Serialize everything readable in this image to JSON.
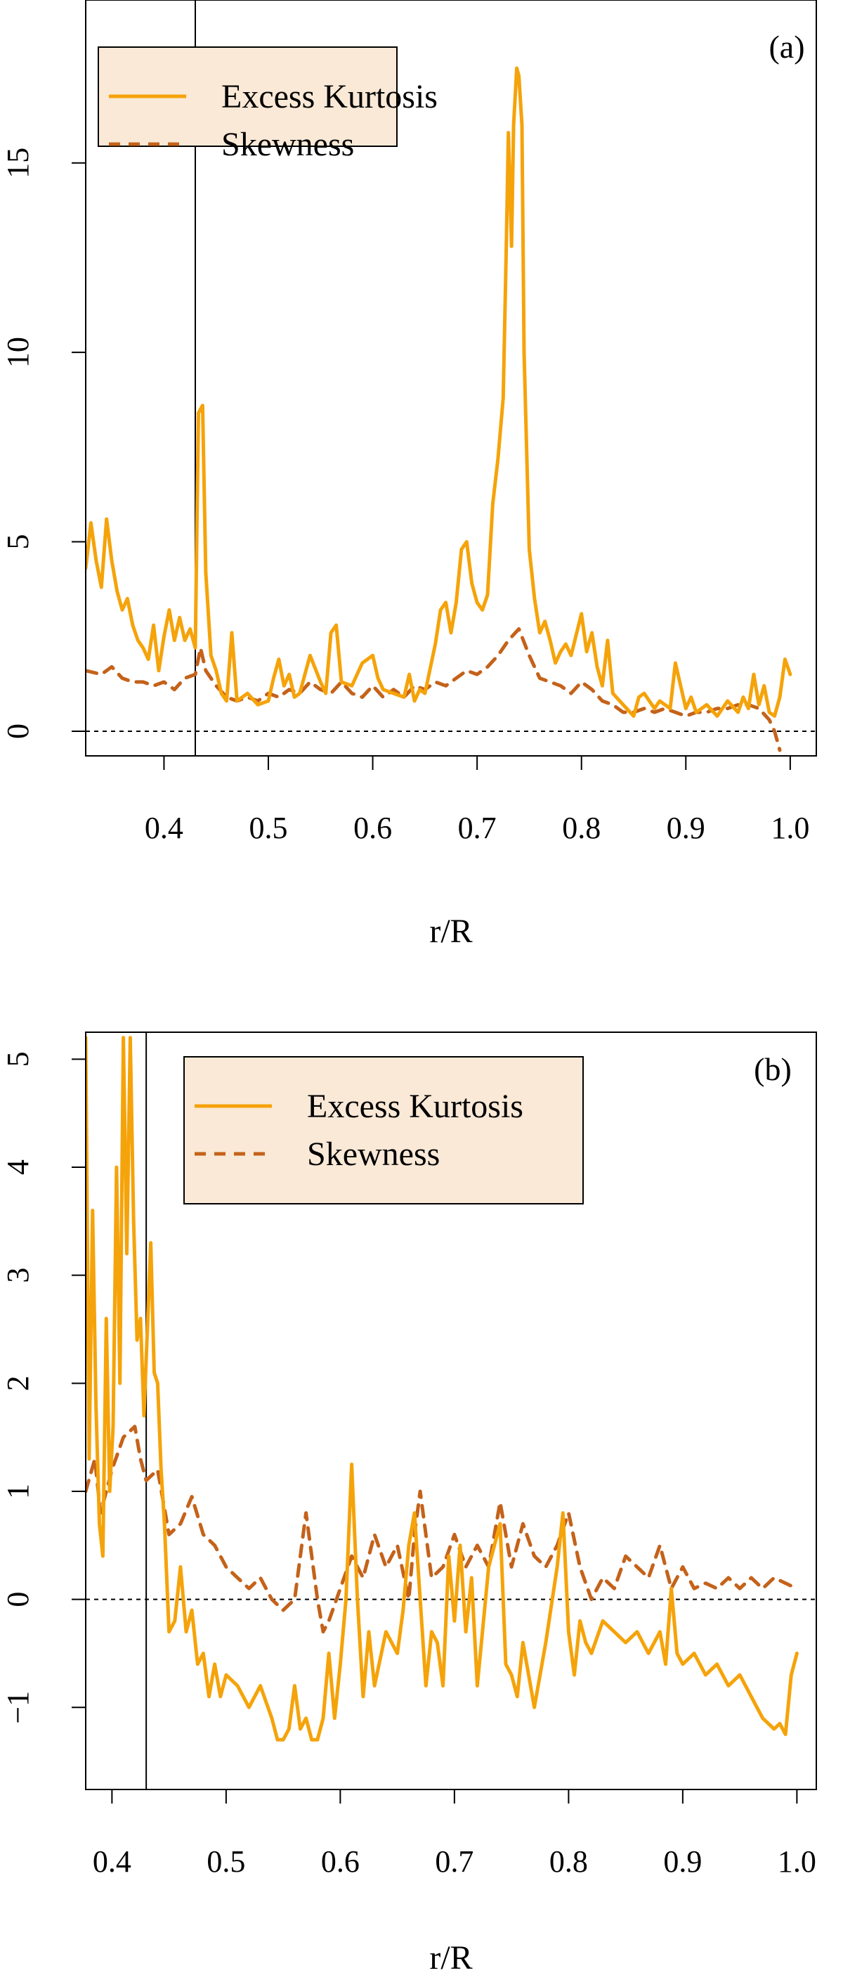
{
  "colors": {
    "kurtosis": "#f5a30a",
    "skewness": "#c4621a",
    "legend_fill": "#f9e9d6",
    "axis": "#000000"
  },
  "chart_data": [
    {
      "type": "line",
      "panel_label": "(a)",
      "xlabel": "r/R",
      "ylabel": "",
      "xlim": [
        0.325,
        1.025
      ],
      "ylim": [
        -0.65,
        19.3
      ],
      "xticks": [
        0.4,
        0.5,
        0.6,
        0.7,
        0.8,
        0.9,
        1.0
      ],
      "xtick_labels": [
        "0.4",
        "0.5",
        "0.6",
        "0.7",
        "0.8",
        "0.9",
        "1.0"
      ],
      "yticks": [
        0,
        5,
        10,
        15
      ],
      "ytick_labels": [
        "0",
        "5",
        "10",
        "15"
      ],
      "vline_x": 0.43,
      "hline_y": 0,
      "legend_position": "top-left",
      "series": [
        {
          "name": "Excess Kurtosis",
          "style": "solid",
          "x": [
            0.325,
            0.33,
            0.335,
            0.34,
            0.345,
            0.35,
            0.355,
            0.36,
            0.365,
            0.37,
            0.375,
            0.38,
            0.385,
            0.39,
            0.395,
            0.4,
            0.405,
            0.41,
            0.415,
            0.42,
            0.425,
            0.43,
            0.433,
            0.437,
            0.44,
            0.445,
            0.45,
            0.455,
            0.46,
            0.465,
            0.47,
            0.48,
            0.49,
            0.5,
            0.505,
            0.51,
            0.515,
            0.52,
            0.525,
            0.53,
            0.54,
            0.55,
            0.555,
            0.56,
            0.565,
            0.57,
            0.58,
            0.59,
            0.6,
            0.605,
            0.61,
            0.62,
            0.63,
            0.635,
            0.64,
            0.645,
            0.65,
            0.66,
            0.665,
            0.67,
            0.675,
            0.68,
            0.685,
            0.69,
            0.695,
            0.7,
            0.705,
            0.71,
            0.715,
            0.72,
            0.725,
            0.728,
            0.73,
            0.733,
            0.735,
            0.738,
            0.74,
            0.743,
            0.745,
            0.75,
            0.755,
            0.76,
            0.765,
            0.77,
            0.775,
            0.78,
            0.785,
            0.79,
            0.8,
            0.805,
            0.81,
            0.815,
            0.82,
            0.825,
            0.83,
            0.84,
            0.85,
            0.855,
            0.86,
            0.87,
            0.875,
            0.88,
            0.885,
            0.89,
            0.9,
            0.905,
            0.91,
            0.92,
            0.93,
            0.94,
            0.95,
            0.955,
            0.96,
            0.965,
            0.97,
            0.975,
            0.98,
            0.985,
            0.99,
            0.995,
            1.0
          ],
          "values": [
            4.3,
            5.5,
            4.5,
            3.8,
            5.6,
            4.5,
            3.7,
            3.2,
            3.5,
            2.8,
            2.4,
            2.2,
            1.9,
            2.8,
            1.6,
            2.5,
            3.2,
            2.4,
            3.0,
            2.4,
            2.7,
            2.2,
            8.4,
            8.6,
            4.2,
            2.0,
            1.6,
            1.0,
            0.8,
            2.6,
            0.8,
            1.0,
            0.7,
            0.8,
            1.4,
            1.9,
            1.2,
            1.5,
            0.9,
            1.0,
            2.0,
            1.3,
            1.0,
            2.6,
            2.8,
            1.3,
            1.2,
            1.8,
            2.0,
            1.4,
            1.1,
            1.0,
            0.9,
            1.5,
            0.8,
            1.1,
            1.0,
            2.3,
            3.2,
            3.4,
            2.6,
            3.4,
            4.8,
            5.0,
            3.9,
            3.4,
            3.2,
            3.6,
            6.0,
            7.2,
            8.8,
            12.8,
            15.8,
            12.8,
            16.0,
            17.5,
            17.3,
            16.0,
            10.0,
            4.8,
            3.5,
            2.6,
            2.9,
            2.4,
            1.8,
            2.1,
            2.3,
            2.0,
            3.1,
            2.1,
            2.6,
            1.7,
            1.2,
            2.4,
            1.0,
            0.7,
            0.4,
            0.9,
            1.0,
            0.6,
            0.8,
            0.7,
            0.6,
            1.8,
            0.6,
            0.9,
            0.5,
            0.7,
            0.4,
            0.8,
            0.5,
            0.9,
            0.6,
            1.5,
            0.7,
            1.2,
            0.5,
            0.4,
            0.9,
            1.9,
            1.5
          ]
        },
        {
          "name": "Skewness",
          "style": "dashed",
          "x": [
            0.325,
            0.34,
            0.35,
            0.36,
            0.37,
            0.38,
            0.39,
            0.4,
            0.41,
            0.42,
            0.43,
            0.435,
            0.44,
            0.45,
            0.46,
            0.47,
            0.48,
            0.49,
            0.5,
            0.51,
            0.52,
            0.53,
            0.54,
            0.55,
            0.56,
            0.57,
            0.58,
            0.59,
            0.6,
            0.61,
            0.62,
            0.63,
            0.64,
            0.65,
            0.66,
            0.67,
            0.68,
            0.69,
            0.7,
            0.71,
            0.72,
            0.73,
            0.74,
            0.75,
            0.76,
            0.77,
            0.78,
            0.79,
            0.8,
            0.81,
            0.82,
            0.83,
            0.84,
            0.85,
            0.86,
            0.87,
            0.88,
            0.89,
            0.9,
            0.91,
            0.92,
            0.93,
            0.94,
            0.95,
            0.96,
            0.97,
            0.98,
            0.985,
            0.99
          ],
          "values": [
            1.6,
            1.5,
            1.7,
            1.4,
            1.3,
            1.3,
            1.2,
            1.3,
            1.1,
            1.4,
            1.5,
            2.2,
            1.6,
            1.2,
            0.9,
            0.8,
            0.9,
            0.8,
            1.0,
            0.9,
            1.1,
            1.0,
            1.3,
            1.1,
            1.0,
            1.3,
            1.0,
            0.9,
            1.2,
            0.9,
            1.1,
            0.9,
            1.2,
            1.1,
            1.3,
            1.2,
            1.4,
            1.6,
            1.5,
            1.7,
            2.0,
            2.4,
            2.7,
            2.0,
            1.4,
            1.3,
            1.2,
            1.0,
            1.3,
            1.1,
            0.8,
            0.7,
            0.5,
            0.5,
            0.6,
            0.5,
            0.6,
            0.5,
            0.4,
            0.5,
            0.5,
            0.6,
            0.6,
            0.7,
            0.7,
            0.6,
            0.3,
            0.0,
            -0.5
          ]
        }
      ]
    },
    {
      "type": "line",
      "panel_label": "(b)",
      "xlabel": "r/R",
      "ylabel": "",
      "xlim": [
        0.377,
        1.017
      ],
      "ylim": [
        -1.76,
        5.25
      ],
      "xticks": [
        0.4,
        0.5,
        0.6,
        0.7,
        0.8,
        0.9,
        1.0
      ],
      "xtick_labels": [
        "0.4",
        "0.5",
        "0.6",
        "0.7",
        "0.8",
        "0.9",
        "1.0"
      ],
      "yticks": [
        -1,
        0,
        1,
        2,
        3,
        4,
        5
      ],
      "ytick_labels": [
        "−1",
        "0",
        "1",
        "2",
        "3",
        "4",
        "5"
      ],
      "vline_x": 0.43,
      "hline_y": 0,
      "legend_position": "top-center",
      "series": [
        {
          "name": "Excess Kurtosis",
          "style": "solid",
          "x": [
            0.377,
            0.38,
            0.383,
            0.386,
            0.389,
            0.392,
            0.395,
            0.398,
            0.401,
            0.404,
            0.407,
            0.41,
            0.413,
            0.416,
            0.419,
            0.422,
            0.425,
            0.428,
            0.431,
            0.434,
            0.437,
            0.44,
            0.443,
            0.446,
            0.45,
            0.455,
            0.46,
            0.465,
            0.47,
            0.475,
            0.48,
            0.485,
            0.49,
            0.495,
            0.5,
            0.51,
            0.52,
            0.53,
            0.54,
            0.545,
            0.55,
            0.555,
            0.56,
            0.565,
            0.57,
            0.575,
            0.58,
            0.585,
            0.59,
            0.595,
            0.6,
            0.605,
            0.61,
            0.615,
            0.62,
            0.625,
            0.63,
            0.64,
            0.65,
            0.655,
            0.66,
            0.665,
            0.67,
            0.675,
            0.68,
            0.685,
            0.69,
            0.695,
            0.7,
            0.705,
            0.71,
            0.715,
            0.72,
            0.73,
            0.74,
            0.745,
            0.75,
            0.755,
            0.76,
            0.765,
            0.77,
            0.78,
            0.79,
            0.795,
            0.8,
            0.805,
            0.81,
            0.815,
            0.82,
            0.83,
            0.84,
            0.85,
            0.86,
            0.87,
            0.88,
            0.885,
            0.89,
            0.895,
            0.9,
            0.91,
            0.92,
            0.93,
            0.94,
            0.95,
            0.96,
            0.97,
            0.98,
            0.985,
            0.99,
            0.995,
            1.0
          ],
          "values": [
            5.2,
            1.3,
            3.6,
            1.8,
            0.7,
            0.4,
            2.6,
            1.0,
            1.6,
            4.0,
            2.0,
            5.2,
            3.2,
            5.2,
            3.5,
            2.4,
            2.6,
            1.7,
            2.5,
            3.3,
            2.1,
            2.0,
            1.2,
            0.7,
            -0.3,
            -0.2,
            0.3,
            -0.3,
            -0.1,
            -0.6,
            -0.5,
            -0.9,
            -0.6,
            -0.9,
            -0.7,
            -0.8,
            -1.0,
            -0.8,
            -1.1,
            -1.3,
            -1.3,
            -1.2,
            -0.8,
            -1.2,
            -1.1,
            -1.3,
            -1.3,
            -1.1,
            -0.5,
            -1.1,
            -0.6,
            0.0,
            1.25,
            0.0,
            -0.9,
            -0.3,
            -0.8,
            -0.3,
            -0.5,
            -0.1,
            0.5,
            0.8,
            0.0,
            -0.8,
            -0.3,
            -0.4,
            -0.8,
            0.4,
            -0.2,
            0.5,
            -0.3,
            0.2,
            -0.8,
            0.3,
            0.7,
            -0.6,
            -0.7,
            -0.9,
            -0.4,
            -0.7,
            -1.0,
            -0.4,
            0.3,
            0.8,
            -0.3,
            -0.7,
            -0.2,
            -0.4,
            -0.5,
            -0.2,
            -0.3,
            -0.4,
            -0.3,
            -0.5,
            -0.3,
            -0.6,
            0.1,
            -0.5,
            -0.6,
            -0.5,
            -0.7,
            -0.6,
            -0.8,
            -0.7,
            -0.9,
            -1.1,
            -1.2,
            -1.15,
            -1.25,
            -0.7,
            -0.5
          ]
        },
        {
          "name": "Skewness",
          "style": "dashed",
          "x": [
            0.377,
            0.385,
            0.39,
            0.4,
            0.41,
            0.42,
            0.425,
            0.43,
            0.44,
            0.45,
            0.46,
            0.47,
            0.48,
            0.49,
            0.5,
            0.51,
            0.52,
            0.53,
            0.54,
            0.55,
            0.56,
            0.57,
            0.58,
            0.585,
            0.59,
            0.6,
            0.61,
            0.62,
            0.63,
            0.64,
            0.65,
            0.66,
            0.665,
            0.67,
            0.68,
            0.69,
            0.7,
            0.71,
            0.72,
            0.73,
            0.74,
            0.75,
            0.76,
            0.77,
            0.78,
            0.79,
            0.8,
            0.81,
            0.82,
            0.83,
            0.84,
            0.85,
            0.86,
            0.87,
            0.88,
            0.89,
            0.9,
            0.91,
            0.92,
            0.93,
            0.94,
            0.95,
            0.96,
            0.97,
            0.98,
            0.99,
            1.0
          ],
          "values": [
            1.0,
            1.3,
            0.8,
            1.2,
            1.5,
            1.6,
            1.3,
            1.1,
            1.2,
            0.6,
            0.7,
            0.95,
            0.6,
            0.5,
            0.3,
            0.2,
            0.1,
            0.2,
            0.0,
            -0.1,
            0.0,
            0.8,
            0.0,
            -0.3,
            -0.2,
            0.1,
            0.4,
            0.2,
            0.6,
            0.3,
            0.5,
            0.0,
            0.6,
            1.0,
            0.2,
            0.3,
            0.6,
            0.3,
            0.5,
            0.3,
            0.9,
            0.3,
            0.7,
            0.4,
            0.3,
            0.5,
            0.8,
            0.3,
            0.0,
            0.2,
            0.1,
            0.4,
            0.3,
            0.2,
            0.5,
            0.1,
            0.3,
            0.1,
            0.15,
            0.1,
            0.2,
            0.1,
            0.2,
            0.1,
            0.2,
            0.15,
            0.1
          ]
        }
      ]
    }
  ]
}
